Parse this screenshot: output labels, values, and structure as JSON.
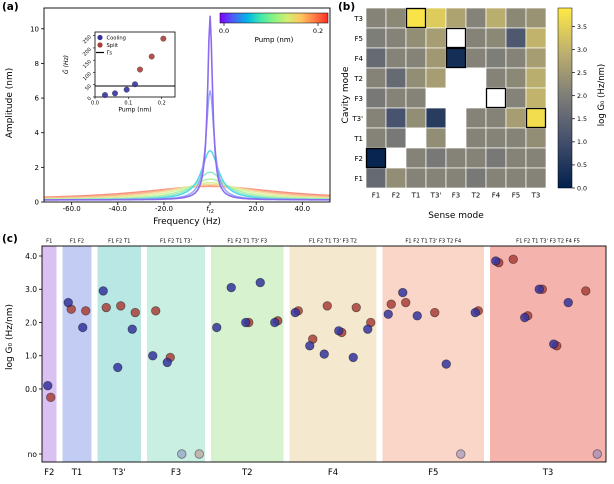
{
  "chart_data": [
    {
      "id": "a",
      "type": "line",
      "panel_label": "(a)",
      "xlabel": "Frequency (Hz)",
      "ylabel": "Amplitude (nm)",
      "xlim": [
        -72,
        52
      ],
      "ylim": [
        0,
        11.2
      ],
      "xticks": [
        {
          "v": -60,
          "label": "-60.0"
        },
        {
          "v": -40,
          "label": "-40.0"
        },
        {
          "v": -20,
          "label": "-20.0"
        },
        {
          "v": 0,
          "label": "fr2"
        },
        {
          "v": 20,
          "label": "20.0"
        },
        {
          "v": 40,
          "label": "40.0"
        }
      ],
      "yticks": [
        0,
        2,
        4,
        6,
        8,
        10
      ],
      "baseline": 0.12,
      "curves": [
        {
          "pump": 0.0,
          "amp": 10.6,
          "hwhm": 1.3,
          "color": "#8b6cf0",
          "lw": 1.6
        },
        {
          "pump": 0.025,
          "amp": 6.3,
          "hwhm": 2.1,
          "color": "#97a6f7",
          "lw": 1.4
        },
        {
          "pump": 0.05,
          "amp": 2.85,
          "hwhm": 4.5,
          "color": "#4fd8e3",
          "lw": 1.4
        },
        {
          "pump": 0.075,
          "amp": 1.6,
          "hwhm": 7.5,
          "color": "#8feacb",
          "lw": 1.4
        },
        {
          "pump": 0.1,
          "amp": 1.2,
          "hwhm": 11,
          "color": "#aef0a3",
          "lw": 1.4
        },
        {
          "pump": 0.125,
          "amp": 1.0,
          "hwhm": 16,
          "color": "#d7f39b",
          "lw": 1.4
        },
        {
          "pump": 0.15,
          "amp": 0.9,
          "hwhm": 22,
          "color": "#f2dc9b",
          "lw": 1.4
        },
        {
          "pump": 0.175,
          "amp": 0.82,
          "hwhm": 29,
          "color": "#f9b289",
          "lw": 1.4
        },
        {
          "pump": 0.2,
          "amp": 0.78,
          "hwhm": 37,
          "color": "#f78e7d",
          "lw": 1.4
        }
      ],
      "colorbar": {
        "label": "Pump (nm)",
        "tick_labels": [
          "0.0",
          "0.2"
        ],
        "gradient": [
          "#8000ff",
          "#4b62f5",
          "#00b4e8",
          "#3ee8ac",
          "#8ef381",
          "#d2ed72",
          "#ffc55e",
          "#ff7c45",
          "#ff2e24"
        ]
      },
      "inset": {
        "xlabel": "Pump (nm)",
        "ylabel": "G̃ (Hz)",
        "xlim": [
          0,
          0.24
        ],
        "ylim": [
          0,
          265
        ],
        "xticks": [
          {
            "v": 0,
            "label": "0.0"
          },
          {
            "v": 0.1,
            "label": "0.1"
          },
          {
            "v": 0.2,
            "label": "0.2"
          }
        ],
        "yticks": [
          {
            "v": 0,
            "label": "0"
          },
          {
            "v": 50,
            "label": "50"
          },
          {
            "v": 100,
            "label": "100"
          },
          {
            "v": 150,
            "label": "150"
          },
          {
            "v": 200,
            "label": "200"
          },
          {
            "v": 250,
            "label": "250"
          }
        ],
        "gamma_s_line": 45,
        "legend": [
          {
            "label": "Cooling",
            "type": "dot",
            "color": "#34349e"
          },
          {
            "label": "Split",
            "type": "dot",
            "color": "#a84038"
          },
          {
            "label": "Γs",
            "type": "line",
            "color": "#000000"
          }
        ],
        "series": [
          {
            "name": "Cooling",
            "color": "#34349e",
            "points": [
              [
                0.03,
                8
              ],
              [
                0.06,
                15
              ],
              [
                0.095,
                30
              ],
              [
                0.12,
                52
              ]
            ]
          },
          {
            "name": "Split",
            "color": "#a84038",
            "points": [
              [
                0.135,
                112
              ],
              [
                0.17,
                165
              ],
              [
                0.205,
                238
              ]
            ]
          }
        ]
      }
    },
    {
      "id": "b",
      "type": "heatmap",
      "panel_label": "(b)",
      "xlabel": "Sense mode",
      "ylabel": "Cavity mode",
      "rows": [
        "T3",
        "F5",
        "F4",
        "T2",
        "F3",
        "T3'",
        "T1",
        "F2",
        "F1"
      ],
      "cols": [
        "F1",
        "F2",
        "T1",
        "T3'",
        "F3",
        "T2",
        "F4",
        "F5",
        "T3"
      ],
      "vmin": 0,
      "vmax": 3.9,
      "values": [
        [
          2.1,
          2.2,
          3.8,
          3.4,
          2.7,
          2.1,
          2.9,
          2.2,
          2.4
        ],
        [
          2.0,
          2.1,
          2.3,
          2.6,
          null,
          2.1,
          2.2,
          1.2,
          3.0
        ],
        [
          1.6,
          2.1,
          2.1,
          2.5,
          0.3,
          2.1,
          2.0,
          2.1,
          2.6
        ],
        [
          2.1,
          1.6,
          2.3,
          2.6,
          null,
          null,
          2.1,
          2.2,
          2.9
        ],
        [
          1.9,
          2.1,
          2.1,
          null,
          null,
          null,
          null,
          2.1,
          3.0
        ],
        [
          2.1,
          1.1,
          2.3,
          0.6,
          null,
          2.1,
          2.1,
          2.6,
          3.7
        ],
        [
          2.1,
          1.9,
          null,
          2.3,
          null,
          2.1,
          2.1,
          2.1,
          2.3
        ],
        [
          0.1,
          null,
          2.1,
          1.9,
          2.1,
          2.1,
          1.9,
          2.1,
          2.1
        ],
        [
          1.6,
          2.3,
          2.1,
          2.1,
          2.1,
          1.9,
          2.1,
          2.1,
          2.1
        ]
      ],
      "highlight_cells": [
        [
          0,
          2
        ],
        [
          1,
          4
        ],
        [
          2,
          4
        ],
        [
          4,
          6
        ],
        [
          5,
          8
        ],
        [
          7,
          0
        ]
      ],
      "colorbar": {
        "label": "log G₀ (Hz/nm)",
        "ticks": [
          0,
          0.5,
          1,
          1.5,
          2,
          2.5,
          3,
          3.5
        ],
        "gradient": [
          "#00204d",
          "#414d6b",
          "#7b7b78",
          "#bcaf6f",
          "#ffe945"
        ]
      }
    },
    {
      "id": "c",
      "type": "scatter",
      "panel_label": "(c)",
      "ylabel": "log G₀ (Hz/nm)",
      "yticks": [
        {
          "v": 4,
          "label": "4.0"
        },
        {
          "v": 3,
          "label": "3.0"
        },
        {
          "v": 2,
          "label": "2.0"
        },
        {
          "v": 1,
          "label": "1.0"
        },
        {
          "v": 0,
          "label": "0.0"
        }
      ],
      "no_label": "no",
      "cooling_color": "#34349e",
      "split_color": "#a84038",
      "no_cooling_color": "#7d7dba",
      "no_split_color": "#ba7d7d",
      "groups": [
        {
          "cavity": "F2",
          "band_color": "#d9c2f2",
          "senses": [
            "F1"
          ],
          "points": [
            {
              "s": "F1",
              "cooling": 0.1,
              "split": -0.25
            }
          ]
        },
        {
          "cavity": "T1",
          "band_color": "#c3cdf4",
          "senses": [
            "F1",
            "F2"
          ],
          "points": [
            {
              "s": "F1",
              "cooling": 2.6,
              "split": 2.4
            },
            {
              "s": "F2",
              "cooling": 1.85,
              "split": 2.35
            }
          ]
        },
        {
          "cavity": "T3'",
          "band_color": "#b9e8e4",
          "senses": [
            "F1",
            "F2",
            "T1"
          ],
          "points": [
            {
              "s": "F1",
              "cooling": 2.95,
              "split": 2.45
            },
            {
              "s": "F2",
              "cooling": 0.65,
              "split": 2.5
            },
            {
              "s": "T1",
              "cooling": 1.8,
              "split": 2.3
            }
          ]
        },
        {
          "cavity": "F3",
          "band_color": "#c9efe2",
          "senses": [
            "F1",
            "F2",
            "T1",
            "T3'"
          ],
          "points": [
            {
              "s": "F1",
              "cooling": 1.0,
              "split": 2.35
            },
            {
              "s": "F2",
              "cooling": 0.8,
              "split": 0.95
            },
            {
              "s": "T1",
              "cooling": "no",
              "split": null
            },
            {
              "s": "T3'",
              "cooling": null,
              "split": "no"
            }
          ]
        },
        {
          "cavity": "T2",
          "band_color": "#d6f2cf",
          "senses": [
            "F1",
            "F2",
            "T1",
            "T3'",
            "F3"
          ],
          "points": [
            {
              "s": "F1",
              "cooling": 1.85,
              "split": null
            },
            {
              "s": "F2",
              "cooling": 3.05,
              "split": null
            },
            {
              "s": "T1",
              "cooling": 2.0,
              "split": 2.0
            },
            {
              "s": "T3'",
              "cooling": 3.2,
              "split": null
            },
            {
              "s": "F3",
              "cooling": 2.0,
              "split": 2.05
            }
          ]
        },
        {
          "cavity": "F4",
          "band_color": "#f4e8cf",
          "senses": [
            "F1",
            "F2",
            "T1",
            "T3'",
            "F3",
            "T2"
          ],
          "points": [
            {
              "s": "F1",
              "cooling": 2.3,
              "split": 2.35
            },
            {
              "s": "F2",
              "cooling": 1.3,
              "split": 1.5
            },
            {
              "s": "T1",
              "cooling": 1.05,
              "split": 2.5
            },
            {
              "s": "T3'",
              "cooling": 1.75,
              "split": 1.7
            },
            {
              "s": "F3",
              "cooling": 0.95,
              "split": 2.45
            },
            {
              "s": "T2",
              "cooling": 1.8,
              "split": 2.0
            }
          ]
        },
        {
          "cavity": "F5",
          "band_color": "#f9d6c8",
          "senses": [
            "F1",
            "F2",
            "T1",
            "T3'",
            "F3",
            "T2",
            "F4"
          ],
          "points": [
            {
              "s": "F1",
              "cooling": 2.25,
              "split": 2.55
            },
            {
              "s": "F2",
              "cooling": 2.9,
              "split": 2.6
            },
            {
              "s": "T1",
              "cooling": 2.2,
              "split": null
            },
            {
              "s": "T3'",
              "cooling": null,
              "split": 2.3
            },
            {
              "s": "F3",
              "cooling": 0.75,
              "split": null
            },
            {
              "s": "T2",
              "cooling": "no",
              "split": null
            },
            {
              "s": "F4",
              "cooling": 2.3,
              "split": 2.35
            }
          ]
        },
        {
          "cavity": "T3",
          "band_color": "#f5b3ae",
          "senses": [
            "F1",
            "F2",
            "T1",
            "T3'",
            "F3",
            "T2",
            "F4",
            "F5"
          ],
          "points": [
            {
              "s": "F1",
              "cooling": 3.85,
              "split": 3.8
            },
            {
              "s": "F2",
              "cooling": null,
              "split": 3.9
            },
            {
              "s": "T1",
              "cooling": 2.15,
              "split": 2.2
            },
            {
              "s": "T3'",
              "cooling": 3.0,
              "split": 3.0
            },
            {
              "s": "F3",
              "cooling": 1.35,
              "split": 1.3
            },
            {
              "s": "T2",
              "cooling": 2.6,
              "split": null
            },
            {
              "s": "F4",
              "cooling": null,
              "split": 2.95
            },
            {
              "s": "F5",
              "cooling": "no",
              "split": null
            }
          ]
        }
      ]
    }
  ]
}
